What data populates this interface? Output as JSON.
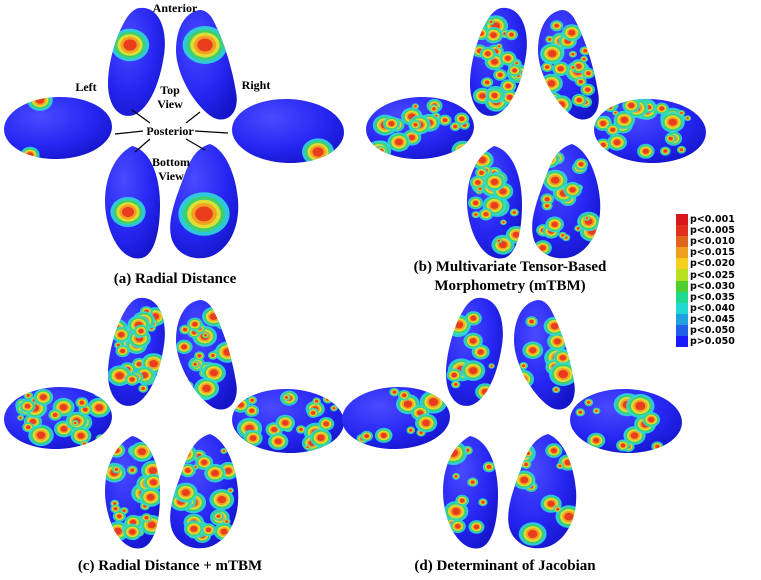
{
  "captions": {
    "a": "(a) Radial Distance",
    "b_line1": "(b) Multivariate Tensor-Based",
    "b_line2": "Morphometry (mTBM)",
    "c": "(c) Radial Distance + mTBM",
    "d": "(d) Determinant of Jacobian"
  },
  "orientation_labels": {
    "anterior": "Anterior",
    "left": "Left",
    "right": "Right",
    "top_view_1": "Top",
    "top_view_2": "View",
    "posterior": "Posterior",
    "bottom_view_1": "Bottom",
    "bottom_view_2": "View"
  },
  "legend": [
    {
      "label": "p<0.001",
      "color": "#d7191c"
    },
    {
      "label": "p<0.005",
      "color": "#e0301e"
    },
    {
      "label": "p<0.010",
      "color": "#e0641e"
    },
    {
      "label": "p<0.015",
      "color": "#f0a020"
    },
    {
      "label": "p<0.020",
      "color": "#f5d020"
    },
    {
      "label": "p<0.025",
      "color": "#b8e020"
    },
    {
      "label": "p<0.030",
      "color": "#50d030"
    },
    {
      "label": "p<0.035",
      "color": "#20d890"
    },
    {
      "label": "p<0.040",
      "color": "#20d8d0"
    },
    {
      "label": "p<0.045",
      "color": "#20a0e0"
    },
    {
      "label": "p<0.050",
      "color": "#2060e8"
    },
    {
      "label": "p>0.050",
      "color": "#1a1aff"
    }
  ],
  "colors": {
    "surface_blue": "#2424f0",
    "sig_red": "#e8321e",
    "sig_orange": "#f59a20",
    "sig_yellow": "#f0e030",
    "sig_green": "#40d060",
    "sig_cyan": "#30d8d8"
  }
}
